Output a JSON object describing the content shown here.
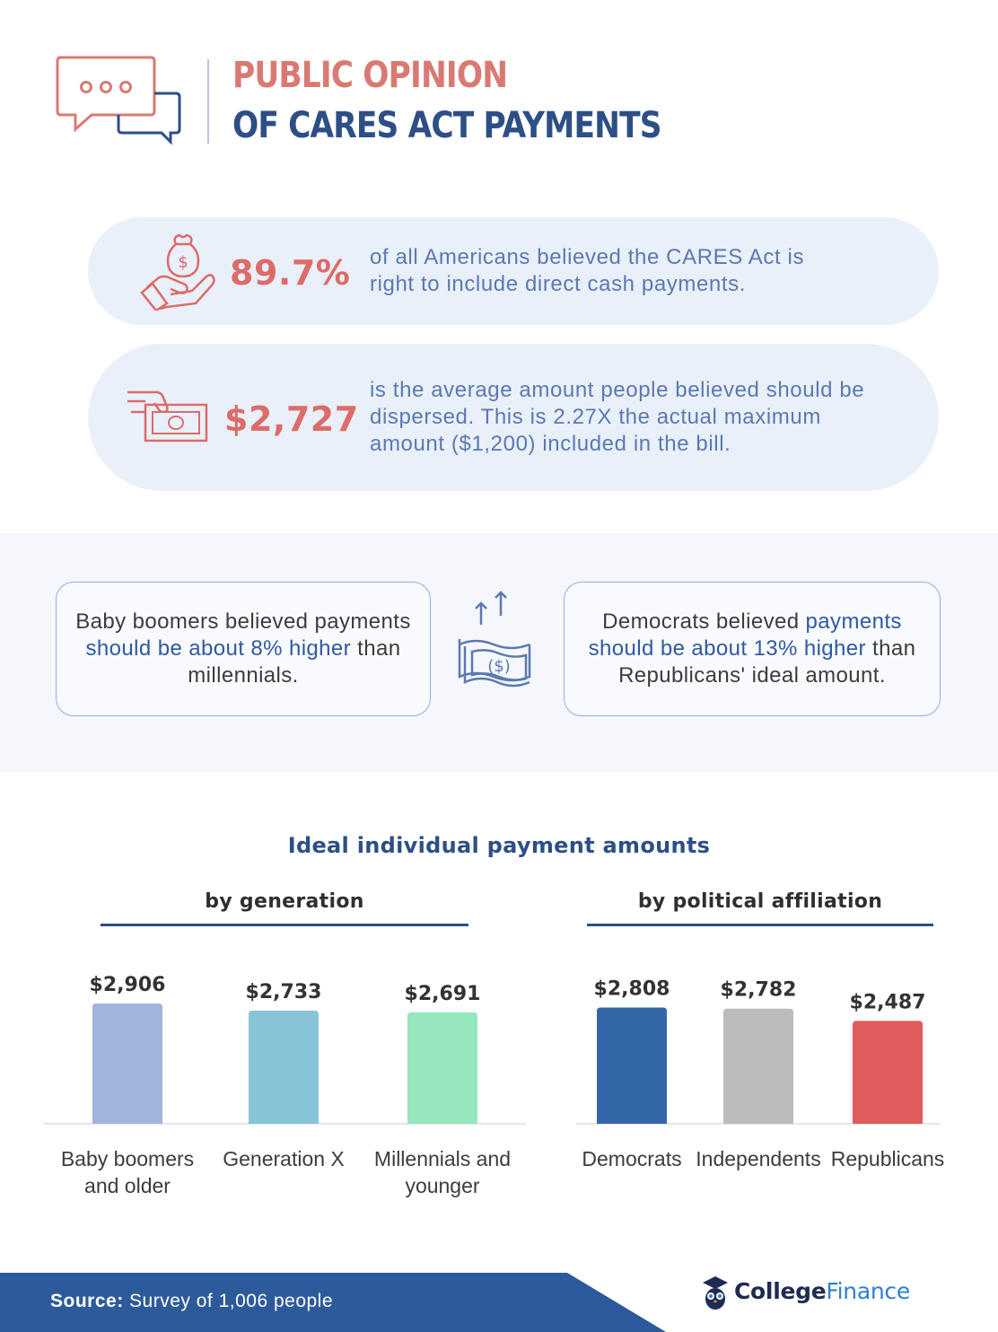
{
  "header": {
    "title_line1": "PUBLIC OPINION",
    "title_line2": "OF CARES ACT PAYMENTS",
    "icon": "chat-bubbles-icon"
  },
  "stats": [
    {
      "value": "89.7%",
      "text_line1": "of all Americans believed the CARES Act is",
      "text_line2": "right to include direct cash payments.",
      "icon": "money-bag-hand-icon"
    },
    {
      "value": "$2,727",
      "text_line1": "is the average amount people believed should be",
      "text_line2": "dispersed. This is 2.27X the actual maximum",
      "text_line3": "amount ($1,200) included in the bill.",
      "icon": "cash-hand-icon"
    }
  ],
  "comparisons": {
    "left": {
      "pre": "Baby boomers believed payments ",
      "highlight": "should be about 8% higher",
      "post": " than millennials."
    },
    "right": {
      "pre": "Democrats believed ",
      "highlight": "payments should be about 13% higher",
      "post": " than Republicans' ideal amount."
    },
    "icon": "money-growth-icon"
  },
  "chart_data": [
    {
      "type": "bar",
      "title": "Ideal individual payment amounts",
      "subtitle": "by generation",
      "categories": [
        "Baby boomers and older",
        "Generation X",
        "Millennials and younger"
      ],
      "category_lines": [
        [
          "Baby boomers",
          "and older"
        ],
        [
          "Generation X"
        ],
        [
          "Millennials and",
          "younger"
        ]
      ],
      "values": [
        2906,
        2733,
        2691
      ],
      "value_labels": [
        "$2,906",
        "$2,733",
        "$2,691"
      ],
      "colors": [
        "#a3b4dc",
        "#88c4d7",
        "#96e6be"
      ]
    },
    {
      "type": "bar",
      "title": "Ideal individual payment amounts",
      "subtitle": "by political affiliation",
      "categories": [
        "Democrats",
        "Independents",
        "Republicans"
      ],
      "category_lines": [
        [
          "Democrats"
        ],
        [
          "Independents"
        ],
        [
          "Republicans"
        ]
      ],
      "values": [
        2808,
        2782,
        2487
      ],
      "value_labels": [
        "$2,808",
        "$2,782",
        "$2,487"
      ],
      "colors": [
        "#3467a8",
        "#bcbcbc",
        "#e05b5b"
      ]
    }
  ],
  "footer": {
    "source_label": "Source:",
    "source_text": "Survey of 1,006 people",
    "band_color": "#2d5a9a",
    "logo_college": "College",
    "logo_finance": "Finance",
    "logo_icon": "owl-graduate-icon"
  }
}
